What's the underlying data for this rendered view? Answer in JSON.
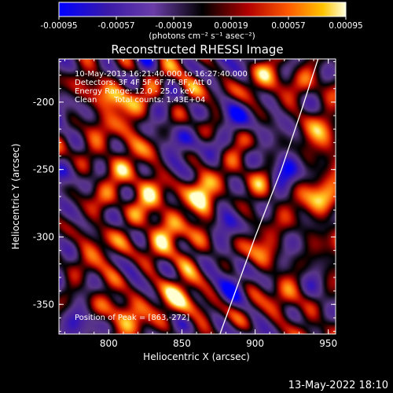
{
  "chart_data": {
    "type": "heatmap",
    "title": "Reconstructed RHESSI Image",
    "xlabel": "Heliocentric X (arcsec)",
    "ylabel": "Heliocentric Y (arcsec)",
    "xlim": [
      766,
      955
    ],
    "ylim": [
      -372,
      -168
    ],
    "x_ticks": [
      800,
      850,
      900,
      950
    ],
    "y_ticks": [
      -200,
      -250,
      -300,
      -350
    ],
    "colorbar": {
      "ticks": [
        "-0.00095",
        "-0.00057",
        "-0.00019",
        "0.00019",
        "0.00057",
        "0.00095"
      ],
      "unit_label": "(photons cm⁻² s⁻¹ asec⁻²)",
      "range": [
        -0.00095,
        0.00095
      ]
    },
    "annotations": {
      "time_range": "10-May-2013 16:21:40.000 to 16:27:40.000",
      "detectors": "Detectors: 3F 4F 5F 6F 7F 8F, Att 0",
      "energy": "Energy Range: 12.0 - 25.0 keV",
      "method": "Clean",
      "counts": "Total counts: 1.43E+04",
      "peak": "Position of Peak = [863,-272]"
    },
    "peak": {
      "x": 863,
      "y": -272,
      "value": 0.00095
    },
    "limb_points": [
      [
        876,
        -372
      ],
      [
        900,
        -300
      ],
      [
        918,
        -250
      ],
      [
        932,
        -205
      ],
      [
        943,
        -168
      ]
    ],
    "sources": [
      {
        "x": 863,
        "y": -272,
        "value": 0.00095,
        "sx": 6,
        "sy": 11
      },
      {
        "x": 866,
        "y": -259,
        "value": 0.0006,
        "sx": 7,
        "sy": 7
      },
      {
        "x": 848,
        "y": -298,
        "value": 0.00045,
        "sx": 16,
        "sy": 8
      },
      {
        "x": 870,
        "y": -305,
        "value": 0.00042,
        "sx": 10,
        "sy": 10
      },
      {
        "x": 885,
        "y": -240,
        "value": 0.0004,
        "sx": 9,
        "sy": 9
      },
      {
        "x": 800,
        "y": -196,
        "value": 0.00045,
        "sx": 14,
        "sy": 8
      },
      {
        "x": 818,
        "y": -215,
        "value": 0.0004,
        "sx": 10,
        "sy": 8
      },
      {
        "x": 830,
        "y": -268,
        "value": 0.00045,
        "sx": 7,
        "sy": 9
      },
      {
        "x": 790,
        "y": -250,
        "value": 0.0004,
        "sx": 12,
        "sy": 10
      },
      {
        "x": 795,
        "y": -300,
        "value": 0.00042,
        "sx": 10,
        "sy": 10
      },
      {
        "x": 808,
        "y": -352,
        "value": 0.00045,
        "sx": 9,
        "sy": 8
      },
      {
        "x": 845,
        "y": -335,
        "value": 0.0004,
        "sx": 12,
        "sy": 8
      },
      {
        "x": 858,
        "y": -350,
        "value": 0.00035,
        "sx": 8,
        "sy": 8
      },
      {
        "x": 905,
        "y": -262,
        "value": 0.00045,
        "sx": 7,
        "sy": 10
      },
      {
        "x": 900,
        "y": -318,
        "value": 0.0004,
        "sx": 8,
        "sy": 10
      },
      {
        "x": 902,
        "y": -190,
        "value": 0.00035,
        "sx": 9,
        "sy": 10
      },
      {
        "x": 870,
        "y": -190,
        "value": 0.00033,
        "sx": 8,
        "sy": 8
      },
      {
        "x": 940,
        "y": -280,
        "value": 0.00035,
        "sx": 8,
        "sy": 10
      },
      {
        "x": 950,
        "y": -230,
        "value": 0.00035,
        "sx": 6,
        "sy": 10
      },
      {
        "x": 950,
        "y": -368,
        "value": 0.0004,
        "sx": 6,
        "sy": 6
      },
      {
        "x": 922,
        "y": -240,
        "value": -0.0006,
        "sx": 8,
        "sy": 20
      },
      {
        "x": 860,
        "y": -232,
        "value": -0.0005,
        "sx": 14,
        "sy": 8
      },
      {
        "x": 840,
        "y": -226,
        "value": -0.0005,
        "sx": 9,
        "sy": 8
      },
      {
        "x": 878,
        "y": -312,
        "value": -0.0005,
        "sx": 9,
        "sy": 14
      },
      {
        "x": 785,
        "y": -360,
        "value": -0.0005,
        "sx": 8,
        "sy": 8
      },
      {
        "x": 945,
        "y": -355,
        "value": -0.0006,
        "sx": 6,
        "sy": 8
      },
      {
        "x": 935,
        "y": -320,
        "value": -0.0005,
        "sx": 8,
        "sy": 8
      },
      {
        "x": 770,
        "y": -275,
        "value": -0.00045,
        "sx": 6,
        "sy": 12
      },
      {
        "x": 880,
        "y": -272,
        "value": -0.0004,
        "sx": 6,
        "sy": 8
      },
      {
        "x": 820,
        "y": -318,
        "value": -0.0004,
        "sx": 8,
        "sy": 8
      },
      {
        "x": 830,
        "y": -185,
        "value": -0.00045,
        "sx": 10,
        "sy": 7
      },
      {
        "x": 880,
        "y": -205,
        "value": -0.0004,
        "sx": 7,
        "sy": 8
      }
    ]
  },
  "footer": {
    "timestamp": "13-May-2022 18:10"
  }
}
